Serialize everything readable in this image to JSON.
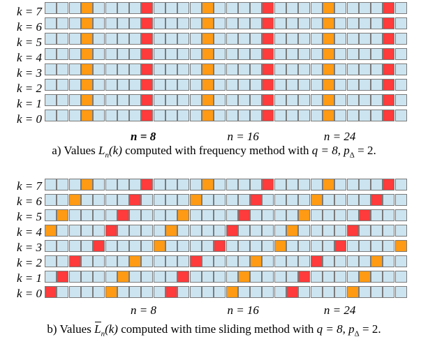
{
  "colors": {
    "empty": "#cce4f0",
    "type_a": "#ff9a14",
    "type_b": "#ff3b3b",
    "grid_line": "#7a7a7a"
  },
  "grid": {
    "columns": 30,
    "rows": 8
  },
  "panels": [
    {
      "id": "a",
      "row_labels": [
        "k = 7",
        "k = 6",
        "k = 5",
        "k = 4",
        "k = 3",
        "k = 2",
        "k = 1",
        "k = 0"
      ],
      "n_labels": [
        {
          "text": "n = 8",
          "bold": true,
          "column": 8
        },
        {
          "text": "n = 16",
          "bold": false,
          "column": 16
        },
        {
          "text": "n = 24",
          "bold": false,
          "column": 24
        }
      ],
      "colored_columns": [
        {
          "column": 3,
          "color": "type_a"
        },
        {
          "column": 8,
          "color": "type_b"
        },
        {
          "column": 13,
          "color": "type_a"
        },
        {
          "column": 18,
          "color": "type_b"
        },
        {
          "column": 23,
          "color": "type_a"
        },
        {
          "column": 28,
          "color": "type_b"
        }
      ],
      "caption": {
        "prefix": "a) Values ",
        "symbol": "L",
        "sub": "n",
        "arg": "(k)",
        "text": " computed with frequency method with ",
        "q": "q = 8, ",
        "p": "p",
        "p_sub": "Δ",
        "p_val": " = 2."
      }
    },
    {
      "id": "b",
      "row_labels": [
        "k = 7",
        "k = 6",
        "k = 5",
        "k = 4",
        "k = 3",
        "k = 2",
        "k = 1",
        "k = 0"
      ],
      "n_labels": [
        {
          "text": "n = 8",
          "bold": false,
          "column": 8
        },
        {
          "text": "n = 16",
          "bold": false,
          "column": 16
        },
        {
          "text": "n = 24",
          "bold": false,
          "column": 24
        }
      ],
      "colored_cells": {
        "k7": [
          [
            3,
            "type_a"
          ],
          [
            8,
            "type_b"
          ],
          [
            13,
            "type_a"
          ],
          [
            18,
            "type_b"
          ],
          [
            23,
            "type_a"
          ],
          [
            28,
            "type_b"
          ]
        ],
        "k6": [
          [
            2,
            "type_a"
          ],
          [
            7,
            "type_b"
          ],
          [
            12,
            "type_a"
          ],
          [
            17,
            "type_b"
          ],
          [
            22,
            "type_a"
          ],
          [
            27,
            "type_b"
          ]
        ],
        "k5": [
          [
            1,
            "type_a"
          ],
          [
            6,
            "type_b"
          ],
          [
            11,
            "type_a"
          ],
          [
            16,
            "type_b"
          ],
          [
            21,
            "type_a"
          ],
          [
            26,
            "type_b"
          ]
        ],
        "k4": [
          [
            0,
            "type_a"
          ],
          [
            5,
            "type_b"
          ],
          [
            10,
            "type_a"
          ],
          [
            15,
            "type_b"
          ],
          [
            20,
            "type_a"
          ],
          [
            25,
            "type_b"
          ]
        ],
        "k3": [
          [
            4,
            "type_b"
          ],
          [
            9,
            "type_a"
          ],
          [
            14,
            "type_b"
          ],
          [
            19,
            "type_a"
          ],
          [
            24,
            "type_b"
          ],
          [
            29,
            "type_a"
          ]
        ],
        "k2": [
          [
            2,
            "type_b"
          ],
          [
            7,
            "type_a"
          ],
          [
            12,
            "type_b"
          ],
          [
            17,
            "type_a"
          ],
          [
            22,
            "type_b"
          ],
          [
            27,
            "type_a"
          ]
        ],
        "k1": [
          [
            1,
            "type_b"
          ],
          [
            6,
            "type_a"
          ],
          [
            11,
            "type_b"
          ],
          [
            16,
            "type_a"
          ],
          [
            21,
            "type_b"
          ],
          [
            26,
            "type_a"
          ]
        ],
        "k0": [
          [
            0,
            "type_b"
          ],
          [
            5,
            "type_a"
          ],
          [
            10,
            "type_b"
          ],
          [
            15,
            "type_a"
          ],
          [
            20,
            "type_b"
          ],
          [
            25,
            "type_a"
          ]
        ]
      },
      "caption": {
        "prefix": "b) Values ",
        "symbol": "L",
        "sub": "n",
        "arg": "(k)",
        "text": " computed with time sliding method with ",
        "q": "q = 8, ",
        "p": "p",
        "p_sub": "Δ",
        "p_val": " = 2."
      }
    }
  ]
}
